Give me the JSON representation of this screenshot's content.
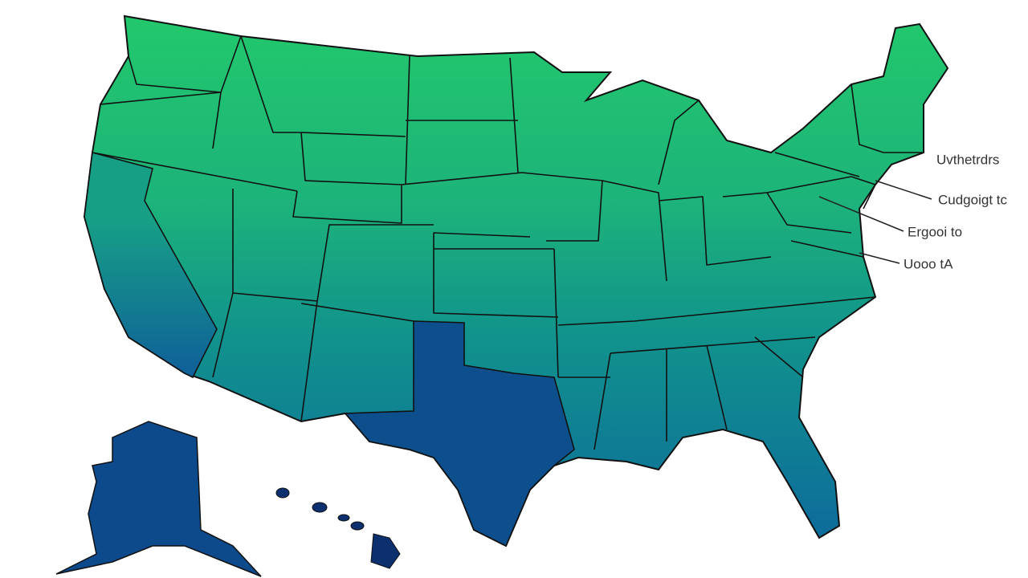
{
  "labels": [
    "Uvthetrdrs",
    "Cudgoigt tc",
    "Ergooi to",
    "Uooo tA"
  ]
}
